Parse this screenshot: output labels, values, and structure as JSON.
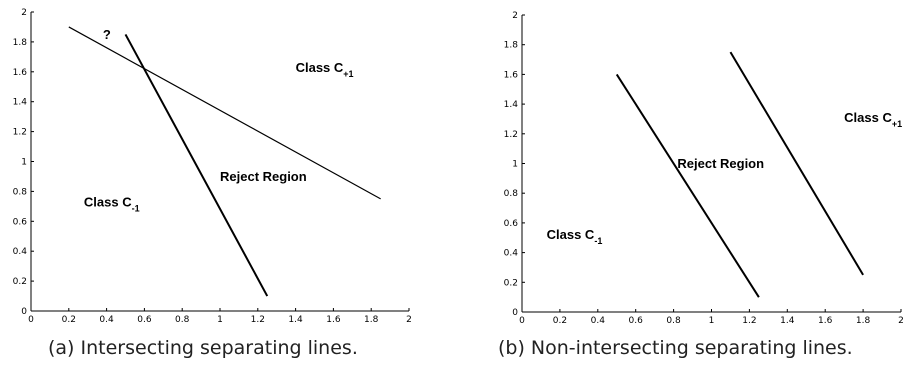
{
  "chart_data": [
    {
      "type": "line",
      "panel": "a",
      "caption": "(a) Intersecting separating lines.",
      "xlim": [
        0,
        2
      ],
      "ylim": [
        0,
        2
      ],
      "xticks": [
        0,
        0.2,
        0.4,
        0.6,
        0.8,
        1,
        1.2,
        1.4,
        1.6,
        1.8,
        2
      ],
      "yticks": [
        0,
        0.2,
        0.4,
        0.6,
        0.8,
        1,
        1.2,
        1.4,
        1.6,
        1.8,
        2
      ],
      "xticklabels": [
        "0",
        "0.2",
        "0.4",
        "0.6",
        "0.8",
        "1",
        "1.2",
        "1.4",
        "1.6",
        "1.8",
        "2"
      ],
      "yticklabels": [
        "0",
        "0.2",
        "0.4",
        "0.6",
        "0.8",
        "1",
        "1.2",
        "1.4",
        "1.6",
        "1.8",
        "2"
      ],
      "grid": false,
      "series": [
        {
          "x": [
            0.2,
            1.85
          ],
          "y": [
            1.9,
            0.75
          ],
          "stroke_width": 1.2
        },
        {
          "x": [
            0.5,
            1.25
          ],
          "y": [
            1.85,
            0.1
          ],
          "stroke_width": 2
        }
      ],
      "annotations": [
        {
          "text": "?",
          "sub": "",
          "x": 0.38,
          "y": 1.82
        },
        {
          "text": "Class C",
          "sub": "+1",
          "x": 1.4,
          "y": 1.6
        },
        {
          "text": "Reject Region",
          "sub": "",
          "x": 1.0,
          "y": 0.87
        },
        {
          "text": "Class C",
          "sub": "-1",
          "x": 0.28,
          "y": 0.7
        }
      ]
    },
    {
      "type": "line",
      "panel": "b",
      "caption": "(b) Non-intersecting separating lines.",
      "xlim": [
        0,
        2
      ],
      "ylim": [
        0,
        2
      ],
      "xticks": [
        0,
        0.2,
        0.4,
        0.6,
        0.8,
        1,
        1.2,
        1.4,
        1.6,
        1.8,
        2
      ],
      "yticks": [
        0,
        0.2,
        0.4,
        0.6,
        0.8,
        1,
        1.2,
        1.4,
        1.6,
        1.8,
        2
      ],
      "xticklabels": [
        "0",
        "0.2",
        "0.4",
        "0.6",
        "0.8",
        "1",
        "1.2",
        "1.4",
        "1.6",
        "1.8",
        "2"
      ],
      "yticklabels": [
        "0",
        "0.2",
        "0.4",
        "0.6",
        "0.8",
        "1",
        "1.2",
        "1.4",
        "1.6",
        "1.8",
        "2"
      ],
      "grid": false,
      "series": [
        {
          "x": [
            0.5,
            1.25
          ],
          "y": [
            1.6,
            0.1
          ],
          "stroke_width": 2
        },
        {
          "x": [
            1.1,
            1.8
          ],
          "y": [
            1.75,
            0.25
          ],
          "stroke_width": 2
        }
      ],
      "annotations": [
        {
          "text": "Reject Region",
          "sub": "",
          "x": 0.82,
          "y": 0.97
        },
        {
          "text": "Class C",
          "sub": "+1",
          "x": 1.7,
          "y": 1.28
        },
        {
          "text": "Class C",
          "sub": "-1",
          "x": 0.13,
          "y": 0.49
        }
      ]
    }
  ]
}
